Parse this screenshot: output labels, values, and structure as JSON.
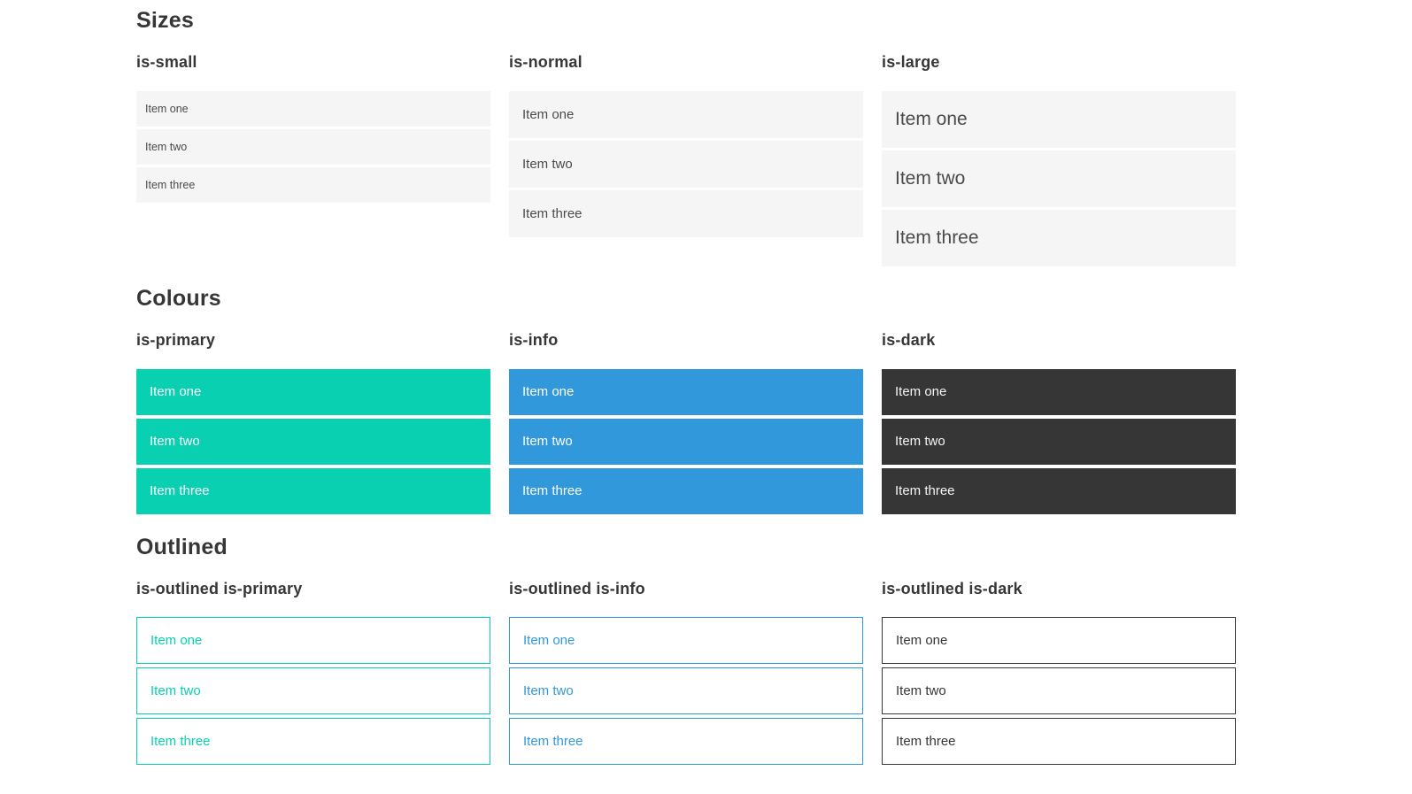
{
  "colors": {
    "primary": "#0ad0b2",
    "info": "#3298dc",
    "dark": "#363636",
    "light_bg": "#f5f5f5",
    "text": "#4a4a4a",
    "heading": "#363636",
    "page_bg": "#ffffff"
  },
  "sections": [
    {
      "title": "Sizes",
      "columns": [
        {
          "heading": "is-small",
          "variant": "small",
          "items": [
            "Item one",
            "Item two",
            "Item three"
          ]
        },
        {
          "heading": "is-normal",
          "variant": "normal",
          "items": [
            "Item one",
            "Item two",
            "Item three"
          ]
        },
        {
          "heading": "is-large",
          "variant": "large",
          "items": [
            "Item one",
            "Item two",
            "Item three"
          ]
        }
      ]
    },
    {
      "title": "Colours",
      "columns": [
        {
          "heading": "is-primary",
          "variant": "primary",
          "items": [
            "Item one",
            "Item two",
            "Item three"
          ]
        },
        {
          "heading": "is-info",
          "variant": "info",
          "items": [
            "Item one",
            "Item two",
            "Item three"
          ]
        },
        {
          "heading": "is-dark",
          "variant": "dark",
          "items": [
            "Item one",
            "Item two",
            "Item three"
          ]
        }
      ]
    },
    {
      "title": "Outlined",
      "columns": [
        {
          "heading": "is-outlined is-primary",
          "variant": "outlined-primary",
          "items": [
            "Item one",
            "Item two",
            "Item three"
          ]
        },
        {
          "heading": "is-outlined is-info",
          "variant": "outlined-info",
          "items": [
            "Item one",
            "Item two",
            "Item three"
          ]
        },
        {
          "heading": "is-outlined is-dark",
          "variant": "outlined-dark",
          "items": [
            "Item one",
            "Item two",
            "Item three"
          ]
        }
      ]
    }
  ]
}
